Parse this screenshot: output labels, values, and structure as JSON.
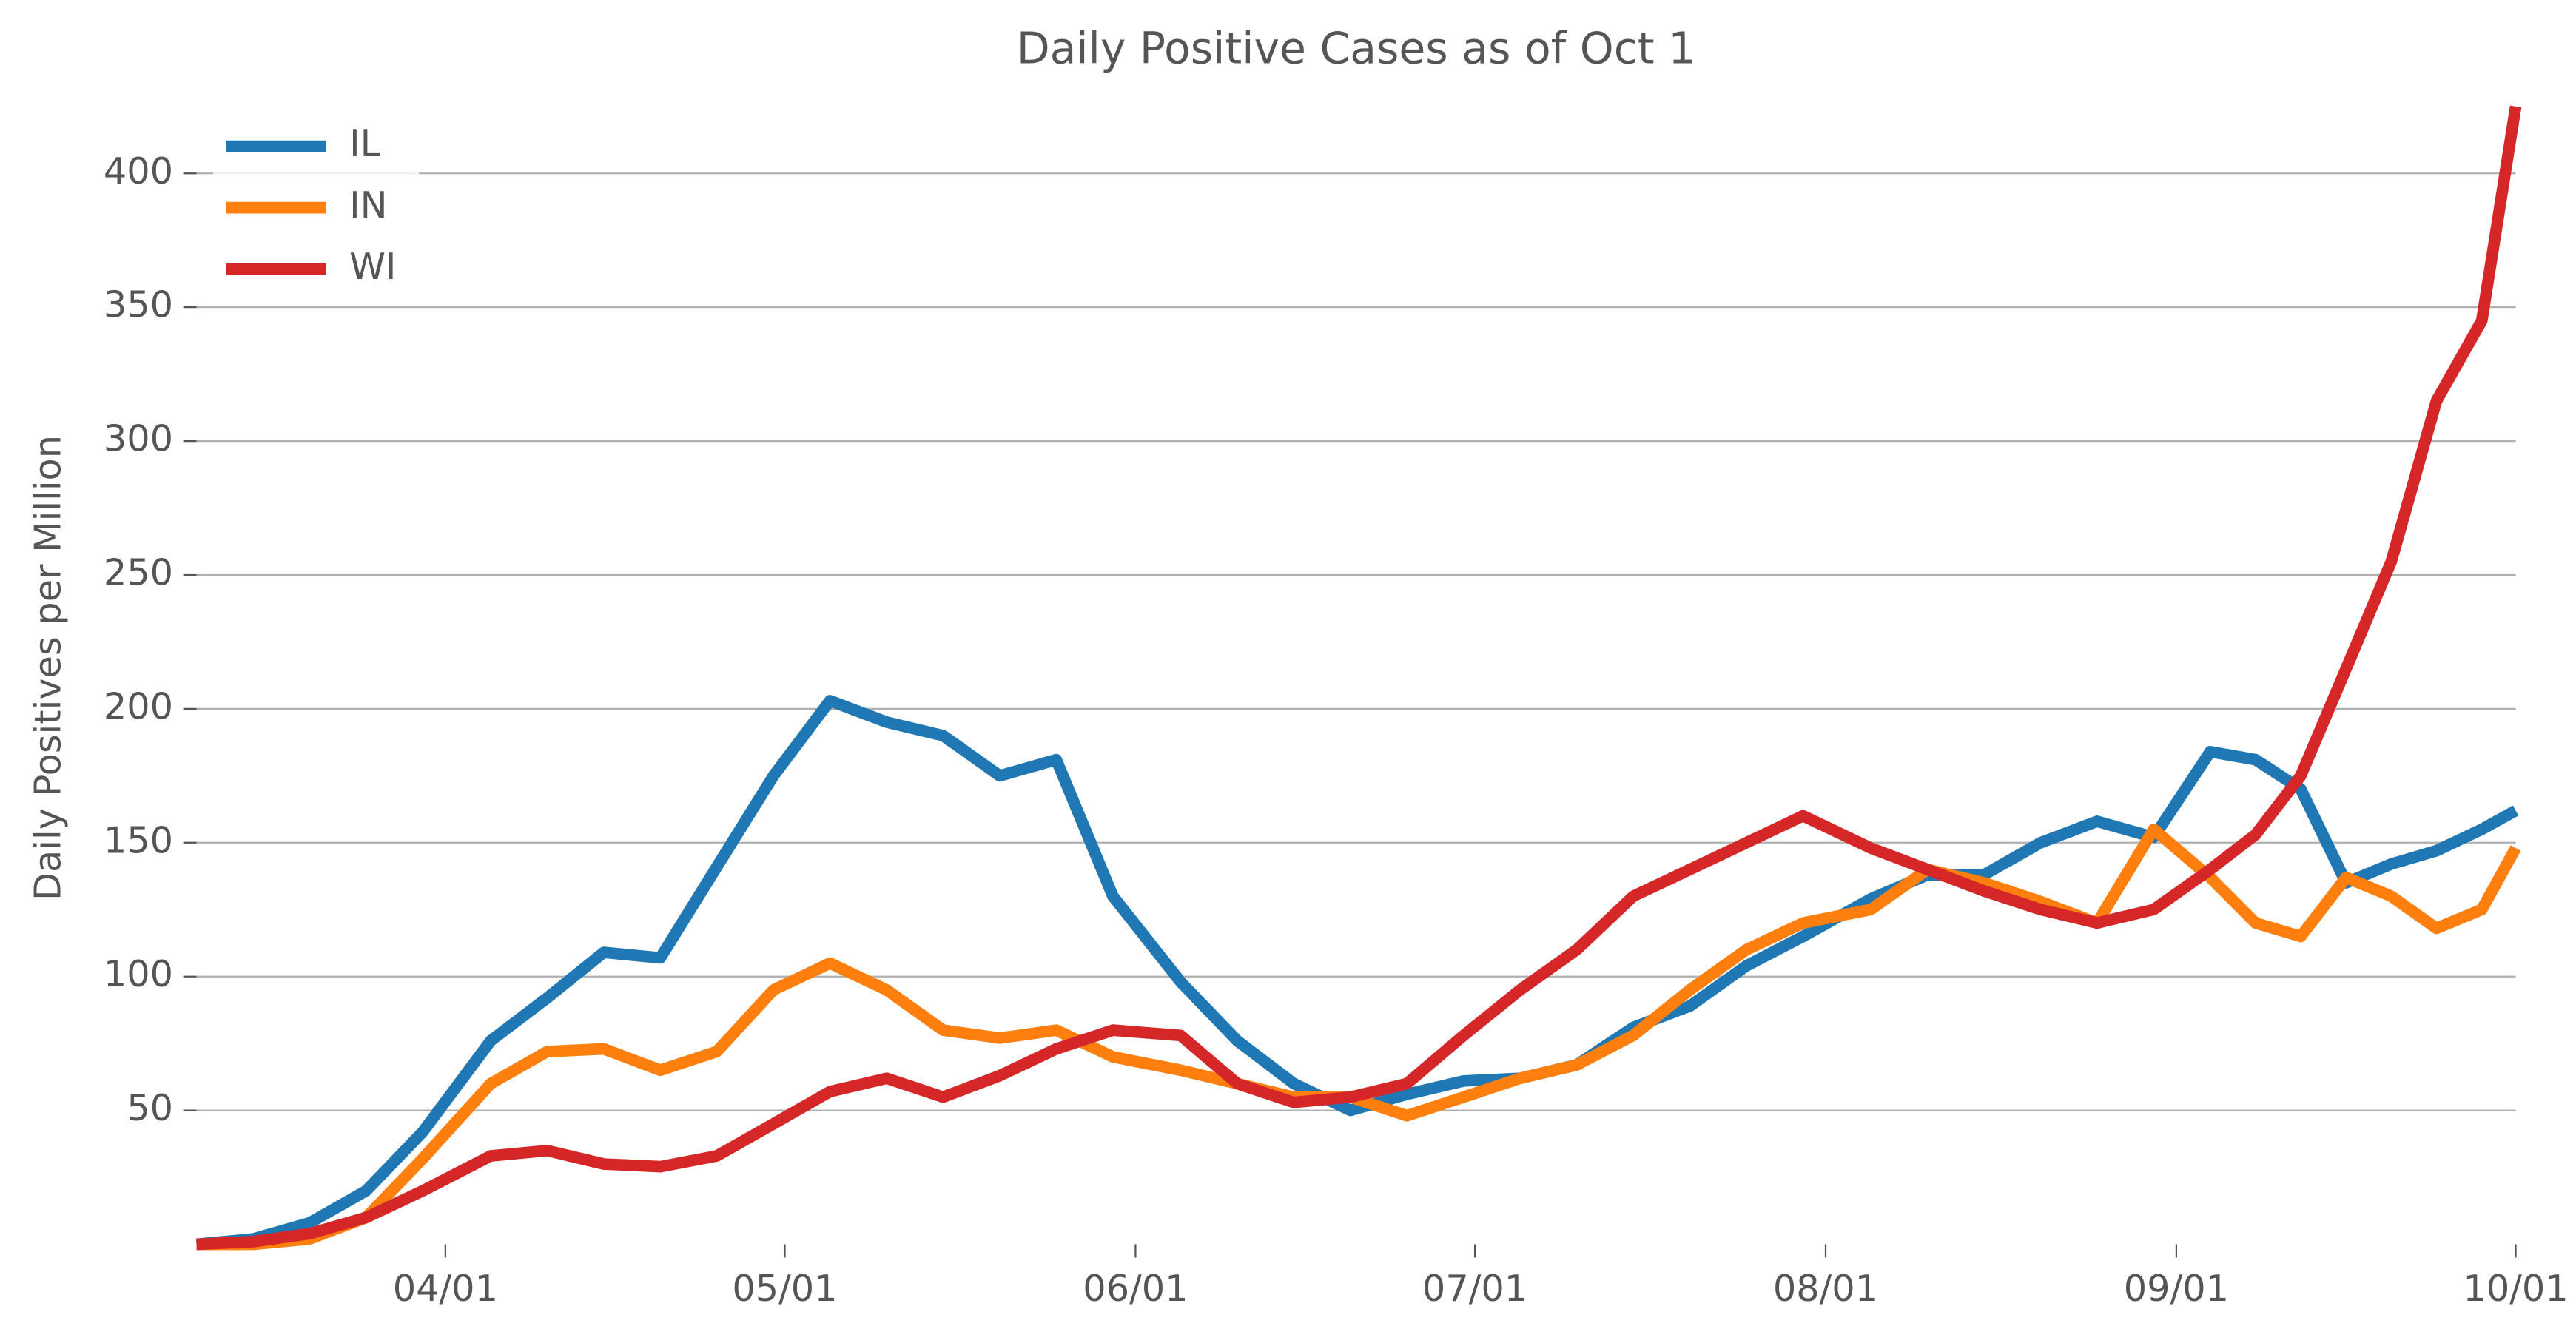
{
  "chart_data": {
    "type": "line",
    "title": "Daily Positive Cases as of Oct 1",
    "y_label": "Daily Positives per Million",
    "x": [
      "03/10",
      "03/15",
      "03/20",
      "03/25",
      "03/30",
      "04/05",
      "04/10",
      "04/15",
      "04/20",
      "04/25",
      "04/30",
      "05/05",
      "05/10",
      "05/15",
      "05/20",
      "05/25",
      "05/30",
      "06/05",
      "06/10",
      "06/15",
      "06/20",
      "06/25",
      "06/30",
      "07/05",
      "07/10",
      "07/15",
      "07/20",
      "07/25",
      "07/30",
      "08/05",
      "08/10",
      "08/15",
      "08/20",
      "08/25",
      "08/30",
      "09/04",
      "09/08",
      "09/12",
      "09/16",
      "09/20",
      "09/24",
      "09/28",
      "10/01"
    ],
    "series": [
      {
        "name": "IL",
        "color": "#1f77b4",
        "values": [
          0,
          2,
          8,
          20,
          42,
          76,
          92,
          109,
          107,
          141,
          175,
          203,
          195,
          190,
          175,
          181,
          130,
          98,
          76,
          60,
          50,
          56,
          61,
          62,
          67,
          81,
          89,
          104,
          115,
          129,
          138,
          138,
          150,
          158,
          152,
          184,
          181,
          170,
          135,
          142,
          147,
          155,
          162
        ]
      },
      {
        "name": "IN",
        "color": "#ff7f0e",
        "values": [
          0,
          0,
          2,
          10,
          32,
          60,
          72,
          73,
          65,
          72,
          95,
          105,
          95,
          80,
          77,
          80,
          70,
          65,
          60,
          55,
          55,
          48,
          55,
          62,
          67,
          78,
          95,
          110,
          120,
          125,
          140,
          135,
          128,
          120,
          155,
          137,
          120,
          115,
          137,
          130,
          118,
          125,
          148
        ]
      },
      {
        "name": "WI",
        "color": "#d62728",
        "values": [
          0,
          1,
          4,
          10,
          20,
          33,
          35,
          30,
          29,
          33,
          45,
          57,
          62,
          55,
          63,
          73,
          80,
          78,
          60,
          53,
          55,
          60,
          78,
          95,
          110,
          130,
          140,
          150,
          160,
          148,
          140,
          132,
          125,
          120,
          125,
          140,
          153,
          175,
          215,
          255,
          315,
          345,
          425
        ]
      }
    ],
    "xlim": [
      "03/10",
      "10/01"
    ],
    "xticks": [
      "04/01",
      "05/01",
      "06/01",
      "07/01",
      "08/01",
      "09/01",
      "10/01"
    ],
    "ylim": [
      0,
      430
    ],
    "yticks": [
      50,
      100,
      150,
      200,
      250,
      300,
      350,
      400
    ],
    "grid": true,
    "legend": "upper-left"
  }
}
